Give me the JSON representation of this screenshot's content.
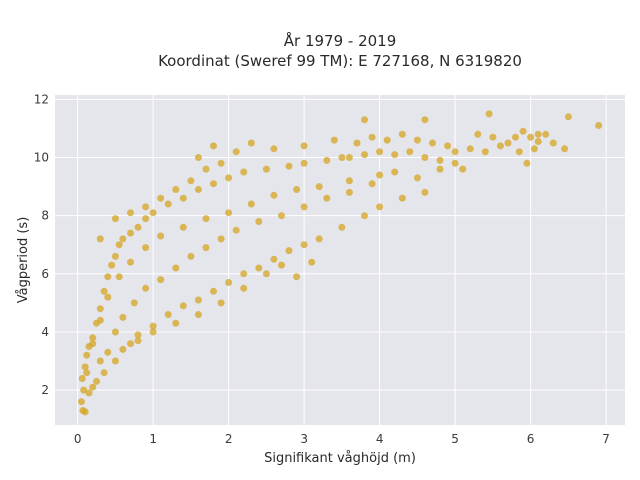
{
  "chart_data": {
    "type": "scatter",
    "title_line1": "År 1979 - 2019",
    "title_line2": "Koordinat (Sweref 99 TM): E 727168, N 6319820",
    "xlabel": "Signifikant våghöjd (m)",
    "ylabel": "Vågperiod (s)",
    "xlim": [
      -0.3,
      7.25
    ],
    "ylim": [
      0.8,
      12.15
    ],
    "x_ticks": [
      0,
      1,
      2,
      3,
      4,
      5,
      6,
      7
    ],
    "y_ticks": [
      2,
      4,
      6,
      8,
      10,
      12
    ],
    "grid": true,
    "legend": "none",
    "colors": {
      "marker": "#D4A421",
      "plot_background": "#E5E5EC",
      "grid": "#ffffff"
    },
    "series": [
      {
        "points": [
          [
            0.05,
            1.6
          ],
          [
            0.07,
            1.3
          ],
          [
            0.1,
            1.25
          ],
          [
            0.08,
            2.0
          ],
          [
            0.06,
            2.4
          ],
          [
            0.1,
            2.8
          ],
          [
            0.12,
            3.2
          ],
          [
            0.15,
            3.5
          ],
          [
            0.2,
            3.8
          ],
          [
            0.25,
            4.3
          ],
          [
            0.3,
            4.8
          ],
          [
            0.35,
            5.4
          ],
          [
            0.4,
            5.9
          ],
          [
            0.45,
            6.3
          ],
          [
            0.5,
            6.6
          ],
          [
            0.55,
            7.0
          ],
          [
            0.6,
            7.2
          ],
          [
            0.7,
            7.4
          ],
          [
            0.8,
            7.6
          ],
          [
            0.9,
            7.9
          ],
          [
            1.0,
            8.1
          ],
          [
            1.2,
            8.4
          ],
          [
            1.4,
            8.6
          ],
          [
            1.6,
            8.9
          ],
          [
            1.8,
            9.1
          ],
          [
            2.0,
            9.3
          ],
          [
            2.2,
            9.5
          ],
          [
            2.5,
            9.6
          ],
          [
            2.8,
            9.7
          ],
          [
            3.0,
            9.8
          ],
          [
            3.3,
            9.9
          ],
          [
            3.6,
            10.0
          ],
          [
            3.8,
            10.1
          ],
          [
            4.0,
            10.2
          ],
          [
            4.2,
            10.1
          ],
          [
            4.4,
            10.2
          ],
          [
            4.6,
            10.0
          ],
          [
            4.8,
            9.9
          ],
          [
            5.0,
            9.8
          ],
          [
            5.1,
            9.6
          ],
          [
            0.25,
            2.3
          ],
          [
            0.35,
            2.6
          ],
          [
            0.5,
            3.0
          ],
          [
            0.6,
            3.4
          ],
          [
            0.7,
            3.6
          ],
          [
            0.8,
            3.9
          ],
          [
            1.0,
            4.2
          ],
          [
            1.2,
            4.6
          ],
          [
            1.4,
            4.9
          ],
          [
            1.6,
            5.1
          ],
          [
            1.8,
            5.4
          ],
          [
            2.0,
            5.7
          ],
          [
            2.2,
            6.0
          ],
          [
            2.4,
            6.2
          ],
          [
            2.6,
            6.5
          ],
          [
            2.8,
            6.8
          ],
          [
            3.0,
            7.0
          ],
          [
            3.2,
            7.2
          ],
          [
            3.5,
            7.6
          ],
          [
            3.8,
            8.0
          ],
          [
            4.0,
            8.3
          ],
          [
            4.3,
            8.6
          ],
          [
            4.6,
            8.8
          ],
          [
            0.3,
            7.2
          ],
          [
            0.5,
            7.9
          ],
          [
            0.7,
            8.1
          ],
          [
            0.9,
            8.3
          ],
          [
            1.1,
            8.6
          ],
          [
            1.3,
            8.9
          ],
          [
            1.5,
            9.2
          ],
          [
            1.7,
            9.6
          ],
          [
            1.9,
            9.8
          ],
          [
            1.6,
            10.0
          ],
          [
            1.8,
            10.4
          ],
          [
            2.1,
            10.2
          ],
          [
            2.3,
            10.5
          ],
          [
            2.6,
            10.3
          ],
          [
            3.0,
            10.4
          ],
          [
            3.4,
            10.6
          ],
          [
            3.5,
            10.0
          ],
          [
            3.7,
            10.5
          ],
          [
            3.9,
            10.7
          ],
          [
            3.8,
            11.3
          ],
          [
            4.1,
            10.6
          ],
          [
            4.3,
            10.8
          ],
          [
            4.5,
            10.6
          ],
          [
            4.6,
            11.3
          ],
          [
            4.7,
            10.5
          ],
          [
            4.9,
            10.4
          ],
          [
            5.0,
            10.2
          ],
          [
            5.2,
            10.3
          ],
          [
            5.3,
            10.8
          ],
          [
            5.4,
            10.2
          ],
          [
            5.5,
            10.7
          ],
          [
            5.45,
            11.5
          ],
          [
            5.6,
            10.4
          ],
          [
            5.7,
            10.5
          ],
          [
            5.8,
            10.7
          ],
          [
            5.9,
            10.9
          ],
          [
            6.0,
            10.7
          ],
          [
            6.05,
            10.3
          ],
          [
            6.1,
            10.8
          ],
          [
            6.2,
            10.8
          ],
          [
            6.3,
            10.5
          ],
          [
            6.45,
            10.3
          ],
          [
            6.5,
            11.4
          ],
          [
            6.9,
            11.1
          ],
          [
            5.95,
            9.8
          ],
          [
            5.85,
            10.2
          ],
          [
            6.1,
            10.55
          ],
          [
            4.0,
            9.4
          ],
          [
            4.2,
            9.5
          ],
          [
            4.5,
            9.3
          ],
          [
            4.8,
            9.6
          ],
          [
            3.9,
            9.1
          ],
          [
            3.6,
            9.2
          ],
          [
            3.2,
            9.0
          ],
          [
            2.9,
            8.9
          ],
          [
            2.6,
            8.7
          ],
          [
            2.3,
            8.4
          ],
          [
            2.0,
            8.1
          ],
          [
            1.7,
            7.9
          ],
          [
            1.4,
            7.6
          ],
          [
            1.1,
            7.3
          ],
          [
            0.9,
            6.9
          ],
          [
            0.7,
            6.4
          ],
          [
            0.55,
            5.9
          ],
          [
            0.4,
            5.2
          ],
          [
            0.3,
            4.4
          ],
          [
            0.2,
            3.6
          ],
          [
            0.12,
            2.6
          ],
          [
            0.15,
            1.9
          ],
          [
            0.2,
            2.1
          ],
          [
            0.3,
            3.0
          ],
          [
            0.4,
            3.3
          ],
          [
            0.5,
            4.0
          ],
          [
            0.6,
            4.5
          ],
          [
            0.75,
            5.0
          ],
          [
            0.9,
            5.5
          ],
          [
            1.1,
            5.8
          ],
          [
            1.3,
            6.2
          ],
          [
            1.5,
            6.6
          ],
          [
            1.7,
            6.9
          ],
          [
            1.9,
            7.2
          ],
          [
            2.1,
            7.5
          ],
          [
            2.4,
            7.8
          ],
          [
            2.7,
            8.0
          ],
          [
            3.0,
            8.3
          ],
          [
            3.3,
            8.6
          ],
          [
            3.6,
            8.8
          ],
          [
            2.5,
            6.0
          ],
          [
            2.7,
            6.3
          ],
          [
            2.9,
            5.9
          ],
          [
            3.1,
            6.4
          ],
          [
            2.2,
            5.5
          ],
          [
            1.9,
            5.0
          ],
          [
            1.6,
            4.6
          ],
          [
            1.3,
            4.3
          ],
          [
            1.0,
            4.0
          ],
          [
            0.8,
            3.7
          ]
        ]
      }
    ]
  }
}
